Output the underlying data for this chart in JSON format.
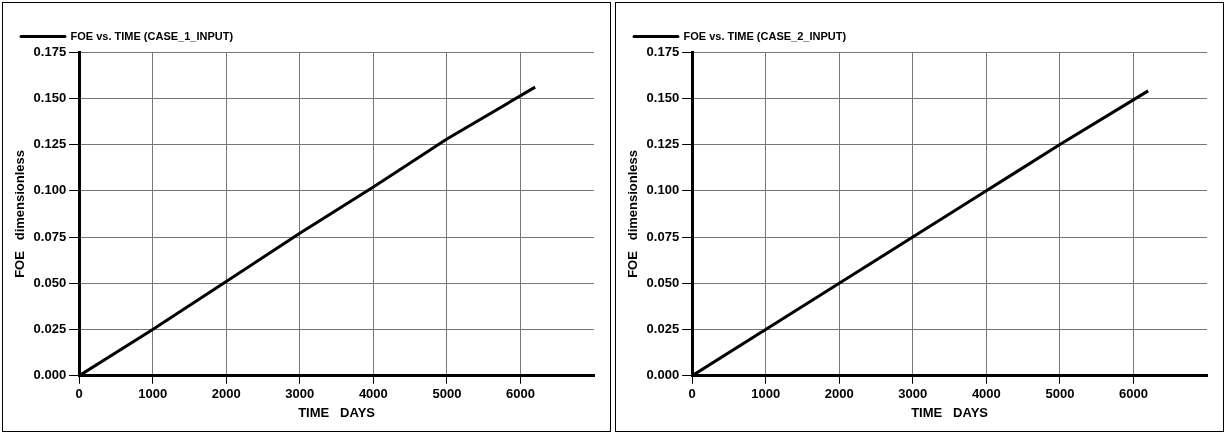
{
  "chart_data": [
    {
      "type": "line",
      "x": [
        0,
        1000,
        2000,
        3000,
        4000,
        5000,
        6200
      ],
      "series": [
        {
          "name": "FOE vs. TIME (CASE_1_INPUT)",
          "color": "#000000",
          "values": [
            0,
            0.025,
            0.051,
            0.077,
            0.102,
            0.128,
            0.156
          ]
        }
      ],
      "xlabel": "TIME   DAYS",
      "ylabel": "FOE   dimensionless",
      "xlim": [
        0,
        7000
      ],
      "xticks": [
        0,
        1000,
        2000,
        3000,
        4000,
        5000,
        6000
      ],
      "ylim": [
        0,
        0.175
      ],
      "yticks": [
        {
          "value": 0,
          "label": "0.000"
        },
        {
          "value": 0.025,
          "label": "0.025"
        },
        {
          "value": 0.05,
          "label": "0.050"
        },
        {
          "value": 0.075,
          "label": "0.075"
        },
        {
          "value": 0.1,
          "label": "0.100"
        },
        {
          "value": 0.125,
          "label": "0.125"
        },
        {
          "value": 0.15,
          "label": "0.150"
        },
        {
          "value": 0.175,
          "label": "0.175"
        }
      ],
      "grid": true,
      "legend": "top left",
      "marker": "none",
      "line_style": "solid"
    },
    {
      "type": "line",
      "x": [
        0,
        1000,
        2000,
        3000,
        4000,
        5000,
        6200
      ],
      "series": [
        {
          "name": "FOE vs. TIME (CASE_2_INPUT)",
          "color": "#000000",
          "values": [
            0,
            0.025,
            0.05,
            0.075,
            0.1,
            0.125,
            0.154
          ]
        }
      ],
      "xlabel": "TIME   DAYS",
      "ylabel": "FOE   dimensionless",
      "xlim": [
        0,
        7000
      ],
      "xticks": [
        0,
        1000,
        2000,
        3000,
        4000,
        5000,
        6000
      ],
      "ylim": [
        0,
        0.175
      ],
      "yticks": [
        {
          "value": 0,
          "label": "0.000"
        },
        {
          "value": 0.025,
          "label": "0.025"
        },
        {
          "value": 0.05,
          "label": "0.050"
        },
        {
          "value": 0.075,
          "label": "0.075"
        },
        {
          "value": 0.1,
          "label": "0.100"
        },
        {
          "value": 0.125,
          "label": "0.125"
        },
        {
          "value": 0.15,
          "label": "0.150"
        },
        {
          "value": 0.175,
          "label": "0.175"
        }
      ],
      "grid": true,
      "legend": "top left",
      "marker": "none",
      "line_style": "solid"
    }
  ]
}
